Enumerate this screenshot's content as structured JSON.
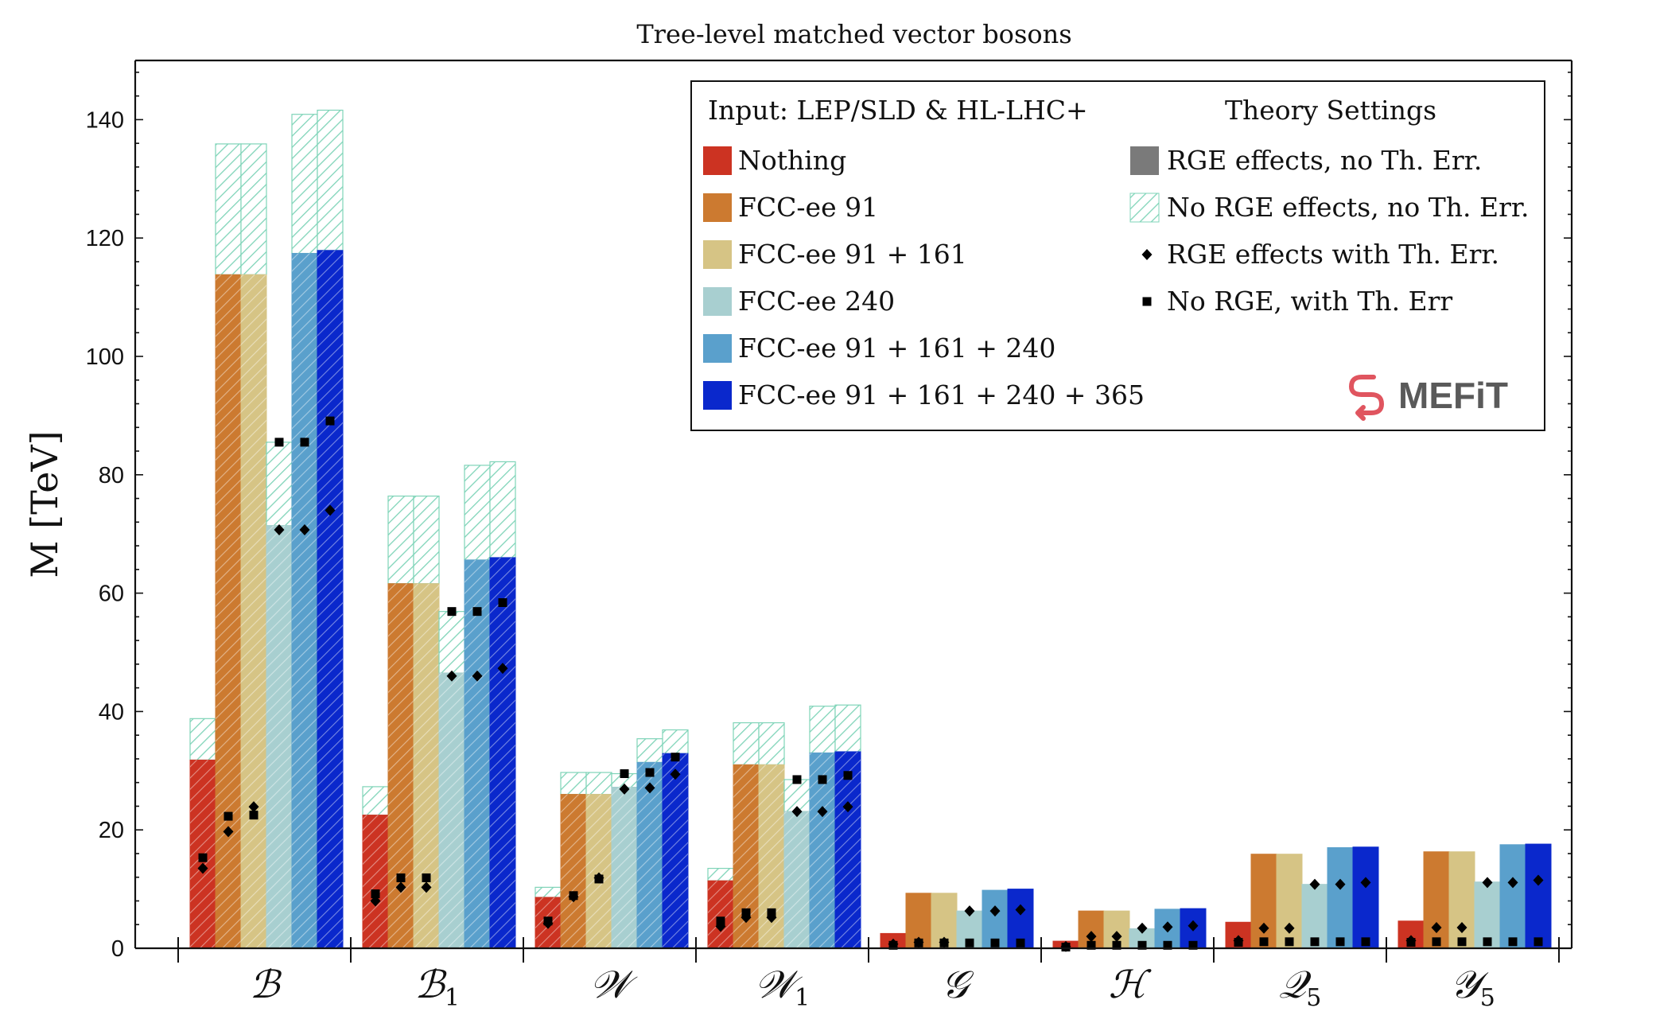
{
  "chart_data": {
    "type": "bar",
    "title": "Tree-level matched vector bosons",
    "ylabel": "M [TeV]",
    "xlabel": "",
    "ylim": [
      0,
      150
    ],
    "yticks": [
      0,
      20,
      40,
      60,
      80,
      100,
      120,
      140
    ],
    "grid": false,
    "legend_position": "top-right",
    "categories": [
      "B",
      "B1",
      "W",
      "W1",
      "G",
      "H",
      "Q5",
      "Y5"
    ],
    "category_labels": [
      {
        "base": "ℬ",
        "sub": ""
      },
      {
        "base": "ℬ",
        "sub": "1"
      },
      {
        "base": "𝒲",
        "sub": ""
      },
      {
        "base": "𝒲",
        "sub": "1"
      },
      {
        "base": "𝒢",
        "sub": ""
      },
      {
        "base": "ℋ",
        "sub": ""
      },
      {
        "base": "𝒬",
        "sub": "5"
      },
      {
        "base": "𝒴",
        "sub": "5"
      }
    ],
    "series": [
      {
        "name": "Nothing",
        "color": "#cc3322",
        "rge_no_th_err": [
          31.8,
          22.5,
          8.6,
          11.4,
          2.5,
          1.2,
          4.4,
          4.6
        ],
        "no_rge_no_th_err": [
          38.8,
          27.3,
          10.3,
          13.5,
          2.5,
          1.2,
          4.4,
          4.6
        ],
        "rge_with_th_err": [
          13.5,
          8.0,
          4.2,
          3.7,
          0.7,
          0.3,
          1.3,
          1.3
        ],
        "no_rge_with_th_err": [
          15.3,
          9.2,
          4.6,
          4.6,
          0.5,
          0.2,
          1.0,
          1.0
        ]
      },
      {
        "name": "FCC-ee 91",
        "color": "#cc7a30",
        "rge_no_th_err": [
          113.8,
          61.6,
          26.0,
          31.0,
          9.3,
          6.3,
          15.9,
          16.3
        ],
        "no_rge_no_th_err": [
          135.9,
          76.4,
          29.7,
          38.1,
          9.3,
          6.3,
          15.9,
          16.3
        ],
        "rge_with_th_err": [
          19.7,
          10.3,
          8.7,
          5.2,
          1.0,
          2.0,
          3.4,
          3.5
        ],
        "no_rge_with_th_err": [
          22.3,
          11.9,
          8.9,
          6.0,
          0.9,
          0.5,
          1.1,
          1.1
        ]
      },
      {
        "name": "FCC-ee 91 + 161",
        "color": "#d6c485",
        "rge_no_th_err": [
          113.8,
          61.6,
          26.0,
          31.0,
          9.3,
          6.3,
          15.9,
          16.3
        ],
        "no_rge_with_th_err": [
          22.5,
          11.9,
          11.7,
          6.0,
          0.9,
          0.5,
          1.1,
          1.1
        ],
        "no_rge_no_th_err": [
          135.9,
          76.4,
          29.7,
          38.1,
          9.3,
          6.3,
          15.9,
          16.3
        ],
        "rge_with_th_err": [
          23.9,
          10.3,
          11.9,
          5.2,
          1.0,
          2.0,
          3.4,
          3.5
        ]
      },
      {
        "name": "FCC-ee 240",
        "color": "#a8cfd0",
        "rge_no_th_err": [
          71.4,
          46.5,
          27.2,
          23.1,
          6.3,
          3.3,
          10.8,
          11.2
        ],
        "no_rge_no_th_err": [
          85.5,
          56.9,
          29.5,
          28.5,
          6.3,
          3.3,
          10.8,
          11.2
        ],
        "rge_with_th_err": [
          70.7,
          46.0,
          26.9,
          23.1,
          6.3,
          3.4,
          10.8,
          11.1
        ],
        "no_rge_with_th_err": [
          85.5,
          56.9,
          29.5,
          28.5,
          0.9,
          0.5,
          1.1,
          1.1
        ]
      },
      {
        "name": "FCC-ee 91 + 161 + 240",
        "color": "#5aa0cc",
        "rge_no_th_err": [
          117.4,
          65.6,
          31.4,
          33.0,
          9.8,
          6.6,
          17.0,
          17.5
        ],
        "no_rge_no_th_err": [
          140.9,
          81.6,
          35.4,
          40.9,
          9.8,
          6.6,
          17.0,
          17.5
        ],
        "rge_with_th_err": [
          70.7,
          46.0,
          27.1,
          23.1,
          6.3,
          3.6,
          10.8,
          11.1
        ],
        "no_rge_with_th_err": [
          85.5,
          56.9,
          29.7,
          28.5,
          0.9,
          0.5,
          1.1,
          1.1
        ]
      },
      {
        "name": "FCC-ee 91 + 161 + 240 + 365",
        "color": "#0a28cc",
        "rge_no_th_err": [
          117.9,
          66.0,
          32.9,
          33.2,
          10.0,
          6.7,
          17.1,
          17.6
        ],
        "no_rge_no_th_err": [
          141.6,
          82.2,
          36.9,
          41.1,
          10.0,
          6.7,
          17.1,
          17.6
        ],
        "rge_with_th_err": [
          74.0,
          47.3,
          29.4,
          23.9,
          6.5,
          3.8,
          11.1,
          11.5
        ],
        "no_rge_with_th_err": [
          89.1,
          58.4,
          32.3,
          29.2,
          0.9,
          0.5,
          1.1,
          1.1
        ]
      }
    ]
  },
  "legend": {
    "input_header": "Input: LEP/SLD & HL-LHC+",
    "theory_header": "Theory Settings",
    "theory_items": [
      {
        "label": "RGE effects, no Th. Err.",
        "marker": "gray-square"
      },
      {
        "label": "No RGE effects, no Th. Err.",
        "marker": "hatch-square"
      },
      {
        "label": "RGE effects with Th. Err.",
        "marker": "diamond"
      },
      {
        "label": "No RGE, with Th. Err",
        "marker": "square"
      }
    ],
    "hatch_color": "#7fd4b8"
  },
  "logo": {
    "text": "MEFiT",
    "color": "#e0555f"
  }
}
